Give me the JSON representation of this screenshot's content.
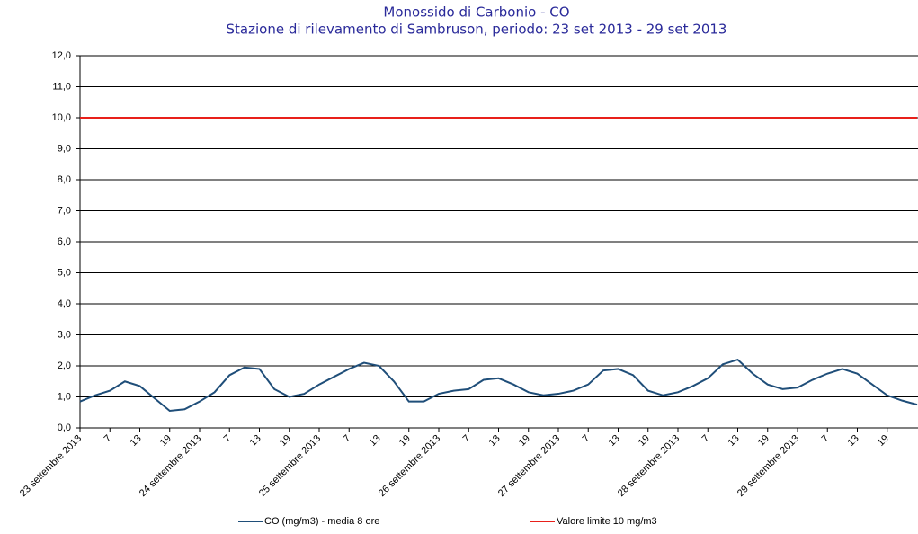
{
  "chart_data": {
    "type": "line",
    "title": "Monossido di Carbonio - CO",
    "subtitle": "Stazione di rilevamento di Sambruson, periodo: 23 set 2013 - 29 set 2013",
    "categories": [
      "23 settembre 2013",
      null,
      "7",
      null,
      "13",
      null,
      "19",
      null,
      "24 settembre 2013",
      null,
      "7",
      null,
      "13",
      null,
      "19",
      null,
      "25 settembre 2013",
      null,
      "7",
      null,
      "13",
      null,
      "19",
      null,
      "26 settembre 2013",
      null,
      "7",
      null,
      "13",
      null,
      "19",
      null,
      "27 settembre 2013",
      null,
      "7",
      null,
      "13",
      null,
      "19",
      null,
      "28 settembre 2013",
      null,
      "7",
      null,
      "13",
      null,
      "19",
      null,
      "29 settembre 2013",
      null,
      "7",
      null,
      "13",
      null,
      "19",
      null,
      null
    ],
    "series": [
      {
        "name": "CO (mg/m3) - media 8 ore",
        "color": "#1f4e79",
        "values": [
          0.85,
          1.05,
          1.2,
          1.5,
          1.35,
          0.95,
          0.55,
          0.6,
          0.85,
          1.15,
          1.7,
          1.95,
          1.9,
          1.25,
          1.0,
          1.1,
          1.4,
          1.65,
          1.9,
          2.1,
          2.0,
          1.5,
          0.85,
          0.85,
          1.1,
          1.2,
          1.25,
          1.55,
          1.6,
          1.4,
          1.15,
          1.05,
          1.1,
          1.2,
          1.4,
          1.85,
          1.9,
          1.7,
          1.2,
          1.05,
          1.15,
          1.35,
          1.6,
          2.05,
          2.2,
          1.75,
          1.4,
          1.25,
          1.3,
          1.55,
          1.75,
          1.9,
          1.75,
          1.4,
          1.05,
          0.88,
          0.75
        ]
      },
      {
        "name": "Valore limite 10 mg/m3",
        "color": "#e8201a",
        "values": [
          10,
          10,
          10,
          10,
          10,
          10,
          10,
          10,
          10,
          10,
          10,
          10,
          10,
          10,
          10,
          10,
          10,
          10,
          10,
          10,
          10,
          10,
          10,
          10,
          10,
          10,
          10,
          10,
          10,
          10,
          10,
          10,
          10,
          10,
          10,
          10,
          10,
          10,
          10,
          10,
          10,
          10,
          10,
          10,
          10,
          10,
          10,
          10,
          10,
          10,
          10,
          10,
          10,
          10,
          10,
          10,
          10
        ]
      }
    ],
    "ylim": [
      0,
      12
    ],
    "yticks": [
      {
        "value": 0,
        "label": "0,0"
      },
      {
        "value": 1,
        "label": "1,0"
      },
      {
        "value": 2,
        "label": "2,0"
      },
      {
        "value": 3,
        "label": "3,0"
      },
      {
        "value": 4,
        "label": "4,0"
      },
      {
        "value": 5,
        "label": "5,0"
      },
      {
        "value": 6,
        "label": "6,0"
      },
      {
        "value": 7,
        "label": "7,0"
      },
      {
        "value": 8,
        "label": "8,0"
      },
      {
        "value": 9,
        "label": "9,0"
      },
      {
        "value": 10,
        "label": "10,0"
      },
      {
        "value": 11,
        "label": "11,0"
      },
      {
        "value": 12,
        "label": "12,0"
      }
    ],
    "grid": true,
    "legend": "bottom"
  }
}
